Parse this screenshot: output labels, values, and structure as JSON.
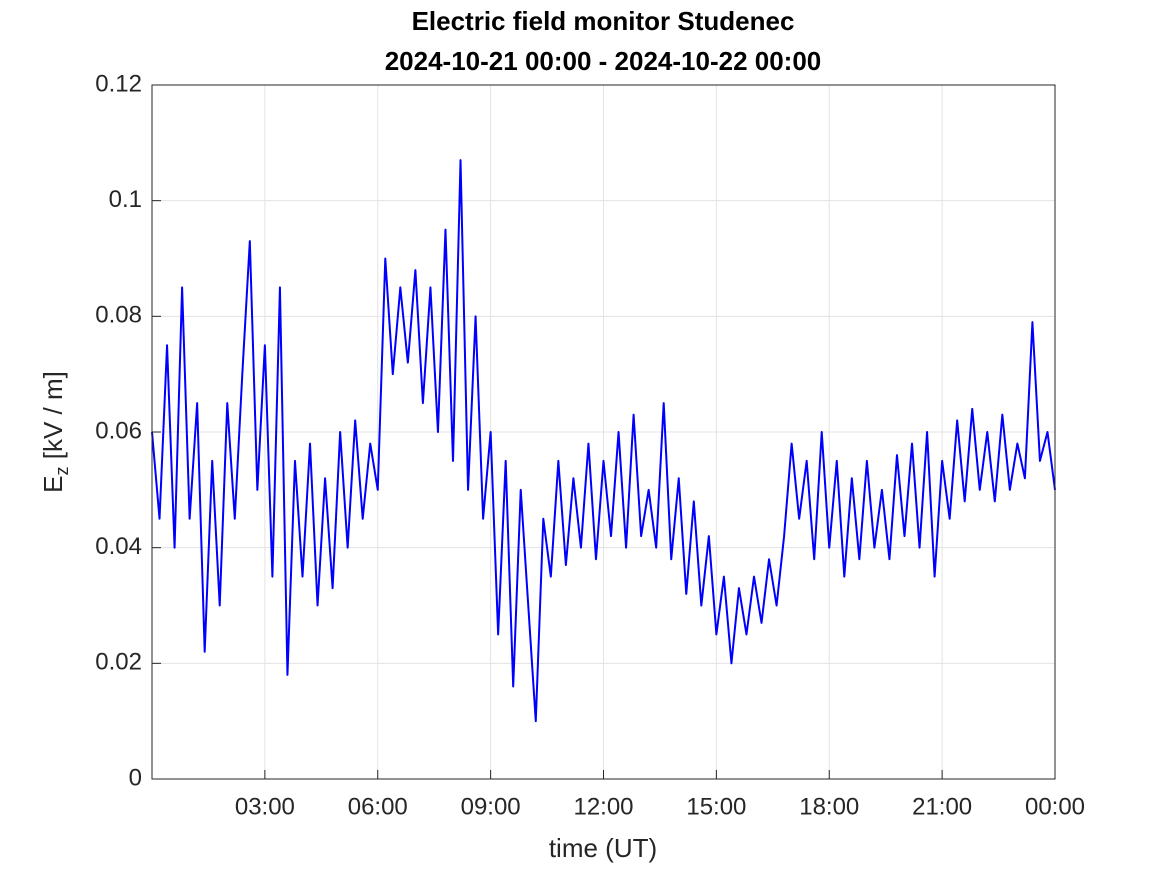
{
  "chart_data": {
    "type": "line",
    "title": "Electric field monitor Studenec",
    "subtitle": "2024-10-21 00:00 - 2024-10-22 00:00",
    "xlabel": "time (UT)",
    "ylabel": [
      "E",
      "z",
      " [kV / m]"
    ],
    "color": "#0000ff",
    "grid": true,
    "xlim": [
      0,
      24
    ],
    "xticks": [
      {
        "value": 3,
        "label": "03:00"
      },
      {
        "value": 6,
        "label": "06:00"
      },
      {
        "value": 9,
        "label": "09:00"
      },
      {
        "value": 12,
        "label": "12:00"
      },
      {
        "value": 15,
        "label": "15:00"
      },
      {
        "value": 18,
        "label": "18:00"
      },
      {
        "value": 21,
        "label": "21:00"
      },
      {
        "value": 24,
        "label": "00:00"
      }
    ],
    "ylim": [
      0,
      0.12
    ],
    "yticks": [
      0,
      0.02,
      0.04,
      0.06,
      0.08,
      0.1,
      0.12
    ],
    "x": [
      0,
      0.2,
      0.4,
      0.6,
      0.8,
      1,
      1.2,
      1.4,
      1.6,
      1.8,
      2,
      2.2,
      2.4,
      2.6,
      2.8,
      3,
      3.2,
      3.4,
      3.6,
      3.8,
      4,
      4.2,
      4.4,
      4.6,
      4.8,
      5,
      5.2,
      5.4,
      5.6,
      5.8,
      6,
      6.2,
      6.4,
      6.6,
      6.8,
      7,
      7.2,
      7.4,
      7.6,
      7.8,
      8,
      8.2,
      8.4,
      8.6,
      8.8,
      9,
      9.2,
      9.4,
      9.6,
      9.8,
      10,
      10.2,
      10.4,
      10.6,
      10.8,
      11,
      11.2,
      11.4,
      11.6,
      11.8,
      12,
      12.2,
      12.4,
      12.6,
      12.8,
      13,
      13.2,
      13.4,
      13.6,
      13.8,
      14,
      14.2,
      14.4,
      14.6,
      14.8,
      15,
      15.2,
      15.4,
      15.6,
      15.8,
      16,
      16.2,
      16.4,
      16.6,
      16.8,
      17,
      17.2,
      17.4,
      17.6,
      17.8,
      18,
      18.2,
      18.4,
      18.6,
      18.8,
      19,
      19.2,
      19.4,
      19.6,
      19.8,
      20,
      20.2,
      20.4,
      20.6,
      20.8,
      21,
      21.2,
      21.4,
      21.6,
      21.8,
      22,
      22.2,
      22.4,
      22.6,
      22.8,
      23,
      23.2,
      23.4,
      23.6,
      23.8,
      24
    ],
    "values": [
      0.06,
      0.045,
      0.075,
      0.04,
      0.085,
      0.045,
      0.065,
      0.022,
      0.055,
      0.03,
      0.065,
      0.045,
      0.07,
      0.093,
      0.05,
      0.075,
      0.035,
      0.085,
      0.018,
      0.055,
      0.035,
      0.058,
      0.03,
      0.052,
      0.033,
      0.06,
      0.04,
      0.062,
      0.045,
      0.058,
      0.05,
      0.09,
      0.07,
      0.085,
      0.072,
      0.088,
      0.065,
      0.085,
      0.06,
      0.095,
      0.055,
      0.107,
      0.05,
      0.08,
      0.045,
      0.06,
      0.025,
      0.055,
      0.016,
      0.05,
      0.03,
      0.01,
      0.045,
      0.035,
      0.055,
      0.037,
      0.052,
      0.04,
      0.058,
      0.038,
      0.055,
      0.042,
      0.06,
      0.04,
      0.063,
      0.042,
      0.05,
      0.04,
      0.065,
      0.038,
      0.052,
      0.032,
      0.048,
      0.03,
      0.042,
      0.025,
      0.035,
      0.02,
      0.033,
      0.025,
      0.035,
      0.027,
      0.038,
      0.03,
      0.042,
      0.058,
      0.045,
      0.055,
      0.038,
      0.06,
      0.04,
      0.055,
      0.035,
      0.052,
      0.038,
      0.055,
      0.04,
      0.05,
      0.038,
      0.056,
      0.042,
      0.058,
      0.04,
      0.06,
      0.035,
      0.055,
      0.045,
      0.062,
      0.048,
      0.064,
      0.05,
      0.06,
      0.048,
      0.063,
      0.05,
      0.058,
      0.052,
      0.079,
      0.055,
      0.06,
      0.05
    ]
  }
}
